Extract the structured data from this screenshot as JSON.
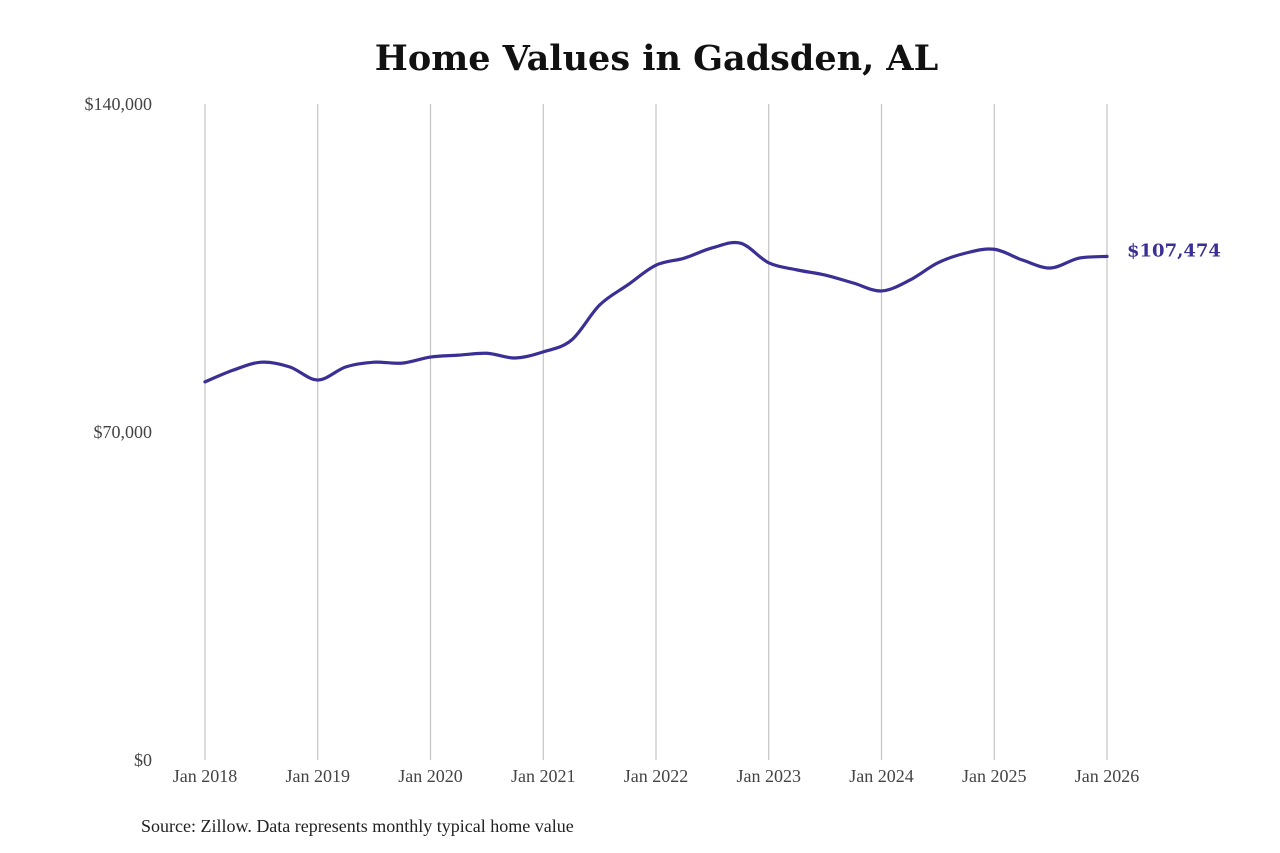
{
  "chart_data": {
    "type": "line",
    "title": "Home Values in Gadsden, AL",
    "source": "Source: Zillow. Data represents monthly typical home value",
    "xlabel": "",
    "ylabel": "",
    "ylim": [
      0,
      140000
    ],
    "y_ticks": [
      {
        "value": 0,
        "label": "$0"
      },
      {
        "value": 70000,
        "label": "$70,000"
      },
      {
        "value": 140000,
        "label": "$140,000"
      }
    ],
    "x_range": [
      2018.0,
      2026.0
    ],
    "x_ticks": [
      {
        "value": 2018,
        "label": "Jan 2018"
      },
      {
        "value": 2019,
        "label": "Jan 2019"
      },
      {
        "value": 2020,
        "label": "Jan 2020"
      },
      {
        "value": 2021,
        "label": "Jan 2021"
      },
      {
        "value": 2022,
        "label": "Jan 2022"
      },
      {
        "value": 2023,
        "label": "Jan 2023"
      },
      {
        "value": 2024,
        "label": "Jan 2024"
      },
      {
        "value": 2025,
        "label": "Jan 2025"
      },
      {
        "value": 2026,
        "label": "Jan 2026"
      }
    ],
    "grid": "vertical",
    "series": [
      {
        "name": "Typical home value",
        "color": "#3a2f94",
        "x": [
          2018.0,
          2018.25,
          2018.5,
          2018.75,
          2019.0,
          2019.25,
          2019.5,
          2019.75,
          2020.0,
          2020.25,
          2020.5,
          2020.75,
          2021.0,
          2021.25,
          2021.5,
          2021.75,
          2022.0,
          2022.25,
          2022.5,
          2022.75,
          2023.0,
          2023.25,
          2023.5,
          2023.75,
          2024.0,
          2024.25,
          2024.5,
          2024.75,
          2025.0,
          2025.25,
          2025.5,
          2025.75,
          2026.0
        ],
        "values": [
          80700,
          83200,
          84900,
          83900,
          81100,
          83900,
          84900,
          84700,
          86000,
          86400,
          86800,
          85800,
          87100,
          89600,
          97100,
          101400,
          105600,
          107100,
          109300,
          110300,
          106100,
          104600,
          103500,
          101800,
          100100,
          102400,
          106100,
          108200,
          109000,
          106700,
          105000,
          107100,
          107474
        ]
      }
    ],
    "end_label": "$107,474"
  }
}
